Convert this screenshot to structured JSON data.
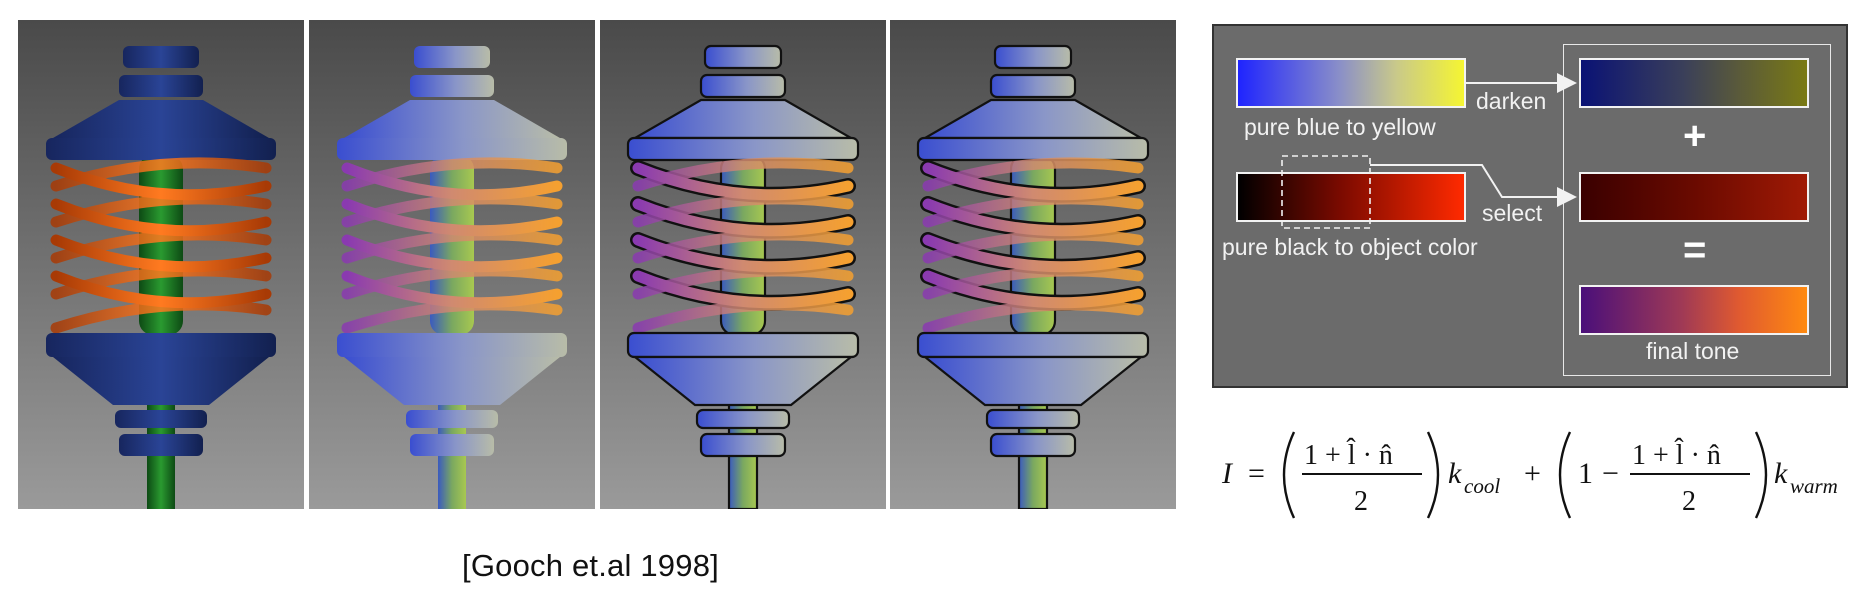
{
  "figure": {
    "panels": [
      {
        "style": "phong",
        "outline": false,
        "tone": "standard"
      },
      {
        "style": "cool-to-warm",
        "outline": false,
        "tone": "gooch"
      },
      {
        "style": "cool-to-warm",
        "outline": true,
        "tone": "gooch"
      },
      {
        "style": "cool-to-warm",
        "outline": true,
        "tone": "gooch"
      }
    ],
    "citation": "[Gooch et.al 1998]"
  },
  "diagram": {
    "labels": {
      "blue_yellow": "pure blue to yellow",
      "black_object": "pure black to object color",
      "darken": "darken",
      "select": "select",
      "final": "final tone"
    },
    "operators": {
      "plus": "+",
      "equals": "="
    },
    "colors": {
      "blue": "#1f24ff",
      "yellow": "#f5f532",
      "black": "#000000",
      "object": "#ff2a00",
      "dark_blue": "#0a1275",
      "dark_yellow": "#7a7a14",
      "dark_red_start": "#3a0000",
      "dark_red_end": "#a01a05",
      "final_start": "#4a0f7a",
      "final_end": "#ff8a10",
      "panel_bg": "#6b6b6b"
    }
  },
  "formula": {
    "lhs": "I",
    "num": "1 + l̂ · n̂",
    "den": "2",
    "k_cool": "k",
    "k_cool_sub": "cool",
    "k_warm": "k",
    "k_warm_sub": "warm",
    "one": "1",
    "minus": "−",
    "plus": "+",
    "equals": "="
  }
}
